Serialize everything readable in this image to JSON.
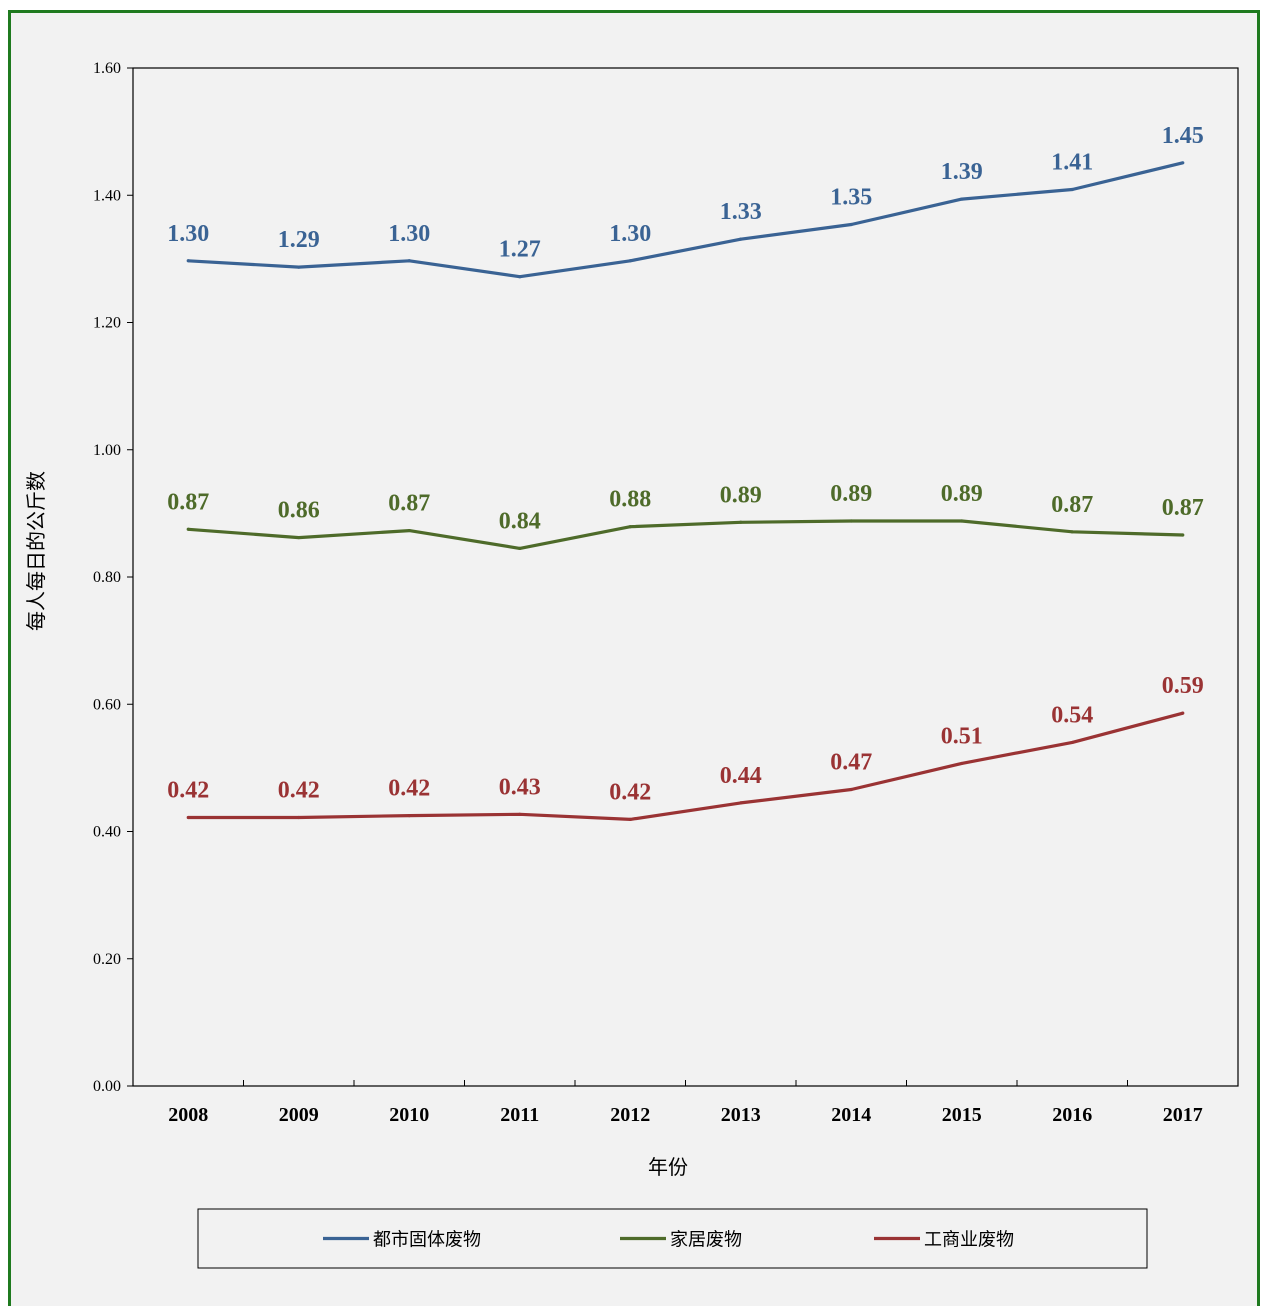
{
  "chart_data": {
    "type": "line",
    "title": "",
    "xlabel": "年份",
    "ylabel": "每人每日的公斤数",
    "ylim": [
      0,
      1.6
    ],
    "yticks": [
      "0.00",
      "0.20",
      "0.40",
      "0.60",
      "0.80",
      "1.00",
      "1.20",
      "1.40",
      "1.60"
    ],
    "categories": [
      "2008",
      "2009",
      "2010",
      "2011",
      "2012",
      "2013",
      "2014",
      "2015",
      "2016",
      "2017"
    ],
    "grid": false,
    "legend_position": "bottom",
    "series": [
      {
        "name": "都市固体废物",
        "color": "#3a6394",
        "values": [
          1.297,
          1.287,
          1.297,
          1.272,
          1.297,
          1.331,
          1.354,
          1.394,
          1.409,
          1.451
        ],
        "labels": [
          "1.30",
          "1.29",
          "1.30",
          "1.27",
          "1.30",
          "1.33",
          "1.35",
          "1.39",
          "1.41",
          "1.45"
        ]
      },
      {
        "name": "家居废物",
        "color": "#4e6b2a",
        "values": [
          0.875,
          0.862,
          0.873,
          0.845,
          0.879,
          0.886,
          0.888,
          0.888,
          0.871,
          0.866
        ],
        "labels": [
          "0.87",
          "0.86",
          "0.87",
          "0.84",
          "0.88",
          "0.89",
          "0.89",
          "0.89",
          "0.87",
          "0.87"
        ]
      },
      {
        "name": "工商业废物",
        "color": "#9a3334",
        "values": [
          0.422,
          0.422,
          0.425,
          0.427,
          0.419,
          0.445,
          0.466,
          0.507,
          0.54,
          0.586
        ],
        "labels": [
          "0.42",
          "0.42",
          "0.42",
          "0.43",
          "0.42",
          "0.44",
          "0.47",
          "0.51",
          "0.54",
          "0.59"
        ]
      }
    ]
  }
}
